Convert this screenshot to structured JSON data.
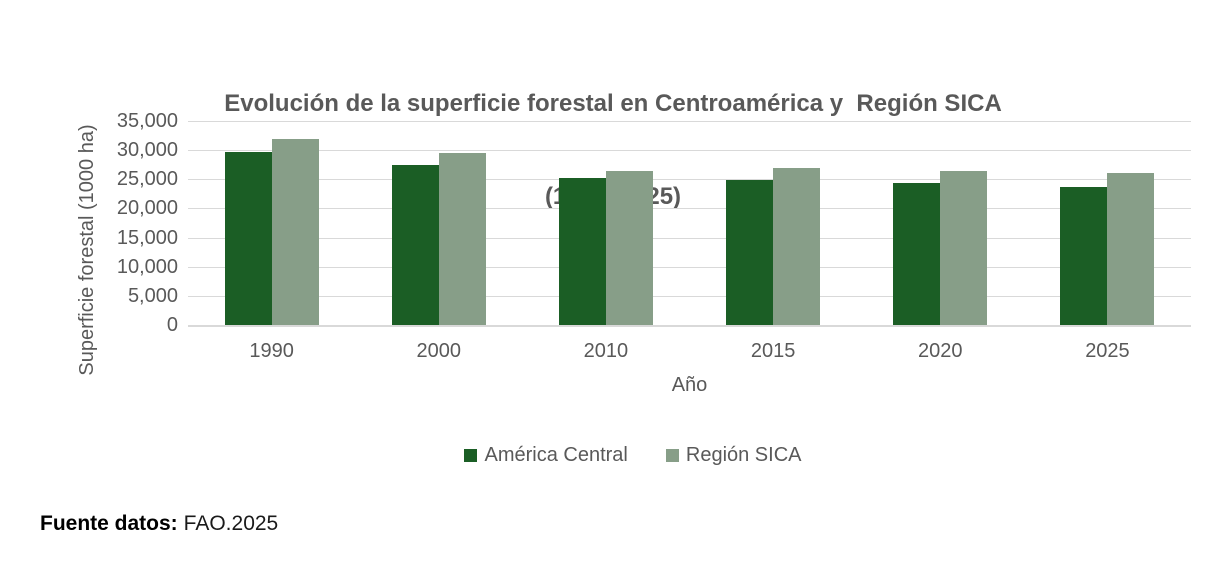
{
  "title": {
    "line1": "Evolución de la superficie forestal en Centroamérica y  Región SICA",
    "line2": "(1990–2025)"
  },
  "chart_data": {
    "type": "bar",
    "categories": [
      "1990",
      "2000",
      "2010",
      "2015",
      "2020",
      "2025"
    ],
    "series": [
      {
        "name": "América Central",
        "color": "#1B5E25",
        "values": [
          29600,
          27400,
          25300,
          24900,
          24300,
          23700
        ]
      },
      {
        "name": "Región SICA",
        "color": "#879E88",
        "values": [
          31900,
          29500,
          26500,
          27000,
          26500,
          26000
        ]
      }
    ],
    "xlabel": "Año",
    "ylabel": "Superficie forestal (1000 ha)",
    "ylim": [
      0,
      35000
    ],
    "ytick_step": 5000,
    "yticks": [
      "0",
      "5,000",
      "10,000",
      "15,000",
      "20,000",
      "25,000",
      "30,000",
      "35,000"
    ],
    "grid": true,
    "legend_position": "bottom",
    "gridline_color": "#D9D9D9",
    "axis_text_color": "#595959",
    "title_color": "#595959"
  },
  "footer": {
    "label": "Fuente datos:",
    "value": "FAO.2025"
  }
}
